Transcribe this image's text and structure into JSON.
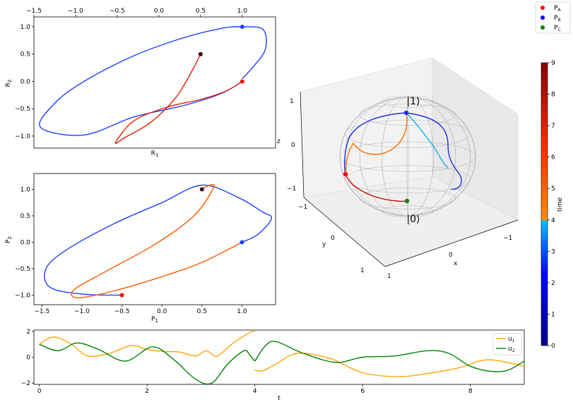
{
  "chart_data": [
    {
      "id": "r-plane",
      "type": "line",
      "xlabel": "R_1",
      "ylabel": "R_2",
      "xlim": [
        -1.5,
        1.4
      ],
      "ylim": [
        -1.22,
        1.18
      ],
      "xticks": [
        "−1.5",
        "−1.0",
        "−0.5",
        "0.0",
        "0.5",
        "1.0"
      ],
      "xtick_values": [
        -1.5,
        -1.0,
        -0.5,
        0.0,
        0.5,
        1.0
      ],
      "yticks": [
        "1.0",
        "0.5",
        "0.0",
        "−0.5",
        "−1.0"
      ],
      "ytick_values": [
        1.0,
        0.5,
        0.0,
        -0.5,
        -1.0
      ],
      "xticks_position": "top",
      "trajectory": [
        [
          1.0,
          0.0
        ],
        [
          0.8,
          -0.18
        ],
        [
          0.5,
          -0.33
        ],
        [
          0.1,
          -0.47
        ],
        [
          -0.3,
          -0.72
        ],
        [
          -0.52,
          -1.12
        ],
        [
          -0.4,
          -1.02
        ],
        [
          -0.1,
          -0.75
        ],
        [
          0.2,
          -0.3
        ],
        [
          0.4,
          0.2
        ],
        [
          0.5,
          0.5
        ]
      ],
      "trajectory_b": [
        [
          1.0,
          0.0
        ],
        [
          0.75,
          -0.22
        ],
        [
          0.3,
          -0.44
        ],
        [
          -0.3,
          -0.65
        ],
        [
          -0.9,
          -0.98
        ],
        [
          -1.42,
          -0.84
        ],
        [
          -1.25,
          -0.4
        ],
        [
          -0.9,
          0.0
        ],
        [
          -0.3,
          0.47
        ],
        [
          0.3,
          0.8
        ],
        [
          0.75,
          0.97
        ],
        [
          1.0,
          1.0
        ],
        [
          1.25,
          0.95
        ],
        [
          1.28,
          0.6
        ],
        [
          1.15,
          0.3
        ],
        [
          1.0,
          0.05
        ]
      ],
      "markers": {
        "start": [
          1.0,
          0.0
        ],
        "blue": [
          1.0,
          1.0
        ],
        "end": [
          0.5,
          0.5
        ]
      }
    },
    {
      "id": "p-plane",
      "type": "line",
      "xlabel": "P_1",
      "ylabel": "P_2",
      "xlim": [
        -1.6,
        1.42
      ],
      "ylim": [
        -1.18,
        1.3
      ],
      "xticks": [
        "−1.5",
        "−1.0",
        "−0.5",
        "0.0",
        "0.5",
        "1.0"
      ],
      "xtick_values": [
        -1.5,
        -1.0,
        -0.5,
        0.0,
        0.5,
        1.0
      ],
      "yticks": [
        "1.0",
        "0.5",
        "0.0",
        "−0.5",
        "−1.0"
      ],
      "ytick_values": [
        1.0,
        0.5,
        0.0,
        -0.5,
        -1.0
      ],
      "trajectory_orange": [
        [
          1.0,
          0.0
        ],
        [
          0.5,
          -0.38
        ],
        [
          0.0,
          -0.65
        ],
        [
          -0.6,
          -0.92
        ],
        [
          -1.05,
          -1.05
        ],
        [
          -1.1,
          -0.9
        ],
        [
          -0.7,
          -0.55
        ],
        [
          -0.1,
          -0.05
        ],
        [
          0.4,
          0.5
        ],
        [
          0.65,
          1.05
        ],
        [
          0.55,
          1.05
        ],
        [
          0.5,
          1.0
        ]
      ],
      "trajectory_blue": [
        [
          -0.5,
          -1.0
        ],
        [
          -1.0,
          -0.98
        ],
        [
          -1.4,
          -0.85
        ],
        [
          -1.45,
          -0.5
        ],
        [
          -1.2,
          -0.15
        ],
        [
          -0.6,
          0.35
        ],
        [
          0.0,
          0.75
        ],
        [
          0.5,
          1.08
        ],
        [
          0.95,
          0.85
        ],
        [
          1.25,
          0.58
        ],
        [
          1.37,
          0.45
        ],
        [
          1.2,
          0.15
        ],
        [
          1.0,
          0.0
        ]
      ],
      "markers": {
        "start": [
          -0.5,
          -1.0
        ],
        "blue": [
          1.0,
          0.0
        ],
        "end": [
          0.5,
          1.0
        ]
      }
    },
    {
      "id": "bloch-sphere",
      "type": "other",
      "top_label": "|1⟩",
      "bottom_label": "|0⟩",
      "xlabel": "x",
      "ylabel": "y",
      "zlabel": "z",
      "zticks": [
        "1",
        "0",
        "−1"
      ],
      "yticks": [
        "−1",
        "0",
        "1"
      ],
      "xticks": [
        "1",
        "0",
        "−1"
      ]
    },
    {
      "id": "controls",
      "type": "line",
      "xlabel": "t",
      "xlim": [
        -0.1,
        9.0
      ],
      "ylim": [
        -2.1,
        2.1
      ],
      "xticks": [
        "0",
        "2",
        "4",
        "6",
        "8"
      ],
      "xtick_values": [
        0,
        2,
        4,
        6,
        8
      ],
      "yticks": [
        "2",
        "0",
        "−2"
      ],
      "ytick_values": [
        2,
        0,
        -2
      ],
      "series": [
        {
          "name": "u_1",
          "label": "u",
          "sub": "1",
          "color": "#ffa500",
          "x": [
            0,
            0.2,
            0.35,
            0.6,
            0.9,
            1.3,
            1.7,
            2.0,
            2.3,
            2.6,
            2.9,
            3.1,
            3.3,
            3.6,
            3.9,
            4.0
          ],
          "y": [
            1.0,
            1.5,
            1.5,
            1.0,
            0.1,
            0.3,
            0.9,
            0.6,
            0.45,
            0.4,
            0.1,
            0.5,
            0.1,
            1.1,
            1.9,
            2.05
          ]
        },
        {
          "name": "u_1 segment 2",
          "color": "#ffa500",
          "x": [
            4.0,
            4.15,
            4.4,
            4.8,
            5.4,
            6.0,
            6.7,
            7.3,
            7.8,
            8.3,
            8.8,
            9.0
          ],
          "y": [
            -1.0,
            -1.05,
            -0.5,
            0.3,
            -0.1,
            -1.2,
            -1.5,
            -1.2,
            -0.8,
            -0.2,
            -0.5,
            -0.7
          ]
        },
        {
          "name": "u_2",
          "label": "u",
          "sub": "2",
          "color": "#008000",
          "x": [
            0,
            0.35,
            0.7,
            1.1,
            1.6,
            2.1,
            2.5,
            2.9,
            3.2,
            3.5,
            3.8,
            3.9,
            4.0
          ],
          "y": [
            1.0,
            0.5,
            1.1,
            0.6,
            -0.3,
            0.8,
            -0.2,
            -1.7,
            -2.0,
            -0.5,
            0.5,
            0.2,
            -0.3
          ]
        },
        {
          "name": "u_2 segment 2",
          "color": "#008000",
          "x": [
            4.0,
            4.2,
            4.4,
            4.9,
            5.5,
            6.0,
            6.6,
            7.2,
            7.6,
            8.0,
            8.4,
            8.7,
            9.0
          ],
          "y": [
            -0.3,
            0.9,
            1.2,
            0.3,
            -0.4,
            0.0,
            0.1,
            0.5,
            0.3,
            -0.7,
            -1.1,
            -1.0,
            -0.3
          ]
        }
      ]
    },
    {
      "id": "colorbar",
      "type": "heatmap",
      "label": "time",
      "range": [
        0,
        9
      ],
      "ticks": [
        "9",
        "8",
        "7",
        "6",
        "5",
        "4",
        "3",
        "2",
        "1",
        "0"
      ],
      "tick_values": [
        9,
        8,
        7,
        6,
        5,
        4,
        3,
        2,
        1,
        0
      ],
      "colors": {
        "low": "#00008b",
        "mid_low": "#0000ff",
        "mid": "#00bfff",
        "orange": "#ff8c00",
        "high": "#ff0000",
        "top": "#8b0000"
      }
    }
  ],
  "legend": [
    {
      "name": "P_A",
      "label": "P",
      "sub": "A",
      "color": "#ff0000"
    },
    {
      "name": "P_B",
      "label": "P",
      "sub": "B",
      "color": "#0000ff"
    },
    {
      "name": "P_C",
      "label": "P",
      "sub": "C",
      "color": "#008000"
    }
  ]
}
